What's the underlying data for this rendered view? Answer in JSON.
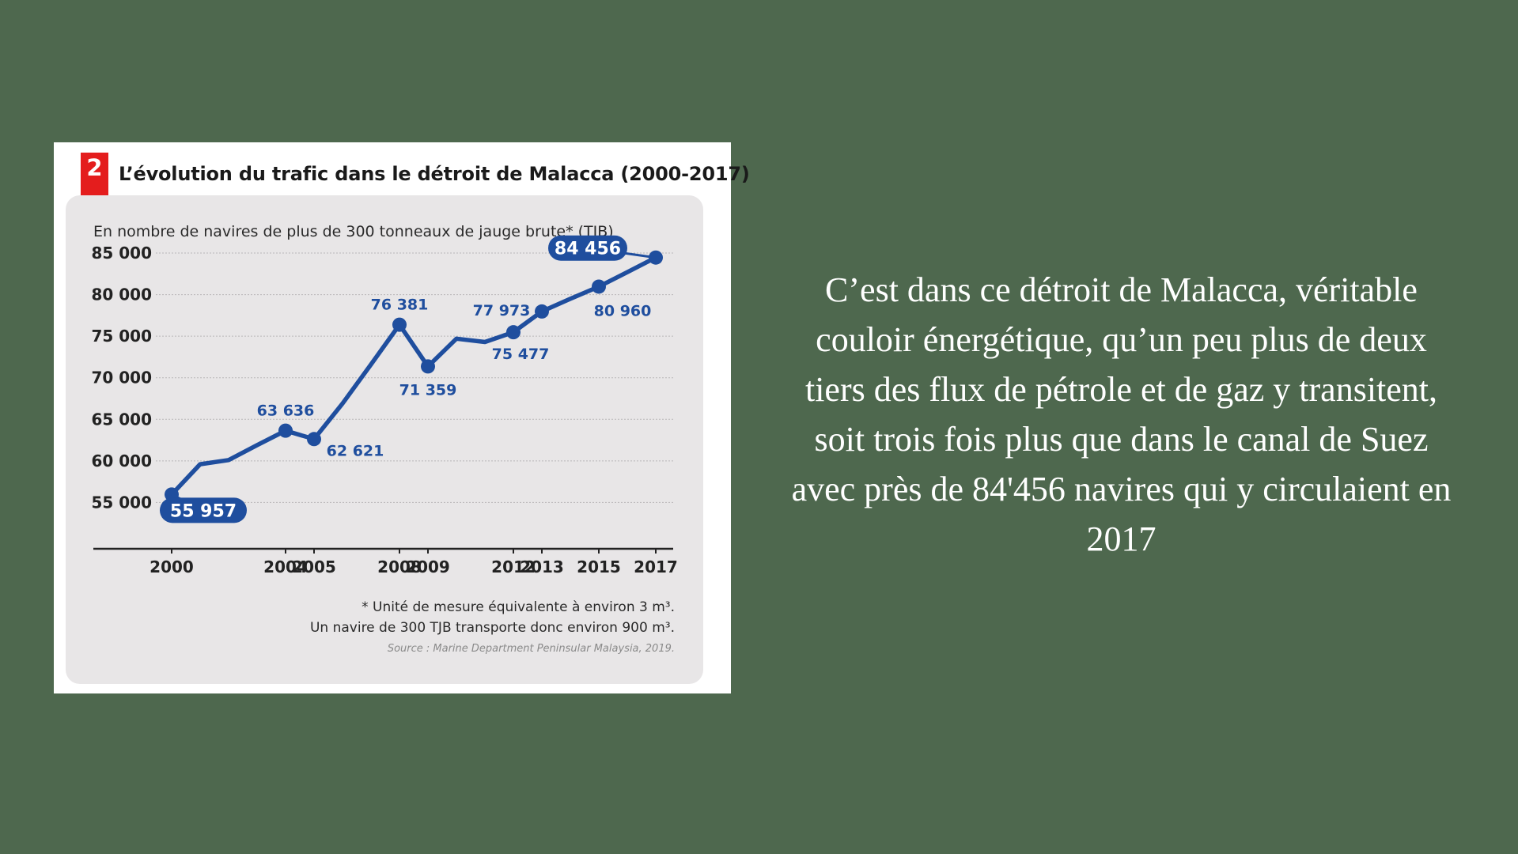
{
  "figure": {
    "number": "2",
    "title": "L’évolution du trafic dans le détroit de Malacca (2000-2017)",
    "subtitle": "En nombre de navires de plus de 300 tonneaux de jauge brute* (TJB)",
    "note_line1": "* Unité de mesure équivalente à environ 3 m³.",
    "note_line2": "Un navire de 300 TJB transporte donc environ 900 m³.",
    "source": "Source : Marine Department Peninsular Malaysia, 2019."
  },
  "chart_data": {
    "type": "line",
    "title": "L’évolution du trafic dans le détroit de Malacca (2000-2017)",
    "ylabel": "En nombre de navires de plus de 300 tonneaux de jauge brute* (TJB)",
    "xlabel": "",
    "x": [
      2000,
      2001,
      2002,
      2003,
      2004,
      2005,
      2006,
      2007,
      2008,
      2009,
      2010,
      2011,
      2012,
      2013,
      2014,
      2015,
      2016,
      2017
    ],
    "series": [
      {
        "values": [
          55957,
          59600,
          60100,
          61900,
          63636,
          62621,
          66900,
          71600,
          76381,
          71359,
          74700,
          74300,
          75477,
          77973,
          79500,
          80960,
          82700,
          84456
        ],
        "color": "#1f4e9e"
      }
    ],
    "markers": [
      2000,
      2004,
      2005,
      2008,
      2009,
      2012,
      2013,
      2015,
      2017
    ],
    "x_tick_labels": [
      "2000",
      "2004",
      "2005",
      "2008",
      "2009",
      "2012",
      "2013",
      "2015",
      "2017"
    ],
    "y_ticks": [
      55000,
      60000,
      65000,
      70000,
      75000,
      80000,
      85000
    ],
    "y_tick_labels": [
      "55 000",
      "60 000",
      "65 000",
      "70 000",
      "75 000",
      "80 000",
      "85 000"
    ],
    "ylim": [
      50000,
      85000
    ],
    "xlim": [
      2000,
      2017
    ],
    "grid": true,
    "data_labels": [
      {
        "year": 2000,
        "text": "55 957",
        "boxed": true
      },
      {
        "year": 2004,
        "text": "63 636",
        "boxed": false
      },
      {
        "year": 2005,
        "text": "62 621",
        "boxed": false
      },
      {
        "year": 2008,
        "text": "76 381",
        "boxed": false
      },
      {
        "year": 2009,
        "text": "71 359",
        "boxed": false
      },
      {
        "year": 2012,
        "text": "75 477",
        "boxed": false
      },
      {
        "year": 2013,
        "text": "77 973",
        "boxed": false
      },
      {
        "year": 2015,
        "text": "80 960",
        "boxed": false
      },
      {
        "year": 2017,
        "text": "84 456",
        "boxed": true
      }
    ]
  },
  "caption": "C’est dans ce détroit de Malacca, véritable couloir énergétique, qu’un peu plus de deux tiers des flux de pétrole et de gaz y transitent, soit trois fois plus que dans le canal de Suez avec près de 84'456 navires qui y circulaient en 2017",
  "colors": {
    "background": "#4e684e",
    "accent_red": "#e41d1d",
    "series_blue": "#1f4e9e",
    "panel": "#e8e6e7"
  }
}
